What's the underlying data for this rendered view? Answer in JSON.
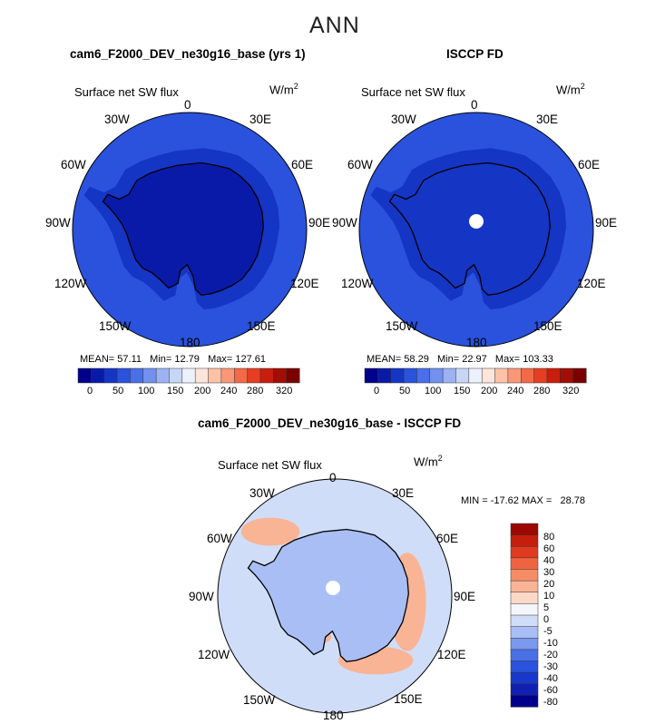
{
  "figure": {
    "season": "ANN",
    "colors": {
      "land_outline": "#000000",
      "pole_hole": "#ffffff"
    }
  },
  "chart_data": [
    {
      "type": "heatmap",
      "projection": "south-polar-stereographic",
      "title": "cam6_F2000_DEV_ne30g16_base (yrs 1)",
      "variable": "Surface net SW flux",
      "units_prefix": "W/m",
      "units_power": "2",
      "longitude_labels": [
        "0",
        "30E",
        "60E",
        "90E",
        "120E",
        "150E",
        "180",
        "150W",
        "120W",
        "90W",
        "60W",
        "30W"
      ],
      "stats": {
        "mean_label": "MEAN=",
        "mean": "57.11",
        "min_label": "Min=",
        "min": "12.79",
        "max_label": "Max=",
        "max": "127.61"
      },
      "colorbar": {
        "orientation": "horizontal",
        "levels": [
          "0",
          "50",
          "100",
          "150",
          "200",
          "240",
          "280",
          "320"
        ],
        "colors": [
          "#00008a",
          "#0a1aa8",
          "#1535c4",
          "#2a52dc",
          "#4a6fe8",
          "#7290ee",
          "#9db2f2",
          "#c8d6f6",
          "#edf1fb",
          "#fde5da",
          "#fbc2a8",
          "#f89878",
          "#f26a48",
          "#e53e22",
          "#c81e0e",
          "#a20d06",
          "#7a0000"
        ]
      },
      "fields": {
        "ocean": 105,
        "coast_ring": 80,
        "antarctica": 35,
        "interior": 28,
        "east_antarctica": 40
      }
    },
    {
      "type": "heatmap",
      "projection": "south-polar-stereographic",
      "title": "ISCCP FD",
      "variable": "Surface net SW flux",
      "units_prefix": "W/m",
      "units_power": "2",
      "longitude_labels": [
        "0",
        "30E",
        "60E",
        "90E",
        "120E",
        "150E",
        "180",
        "150W",
        "120W",
        "90W",
        "60W",
        "30W"
      ],
      "stats": {
        "mean_label": "MEAN=",
        "mean": "58.29",
        "min_label": "Min=",
        "min": "22.97",
        "max_label": "Max=",
        "max": "103.33"
      },
      "colorbar": {
        "orientation": "horizontal",
        "levels": [
          "0",
          "50",
          "100",
          "150",
          "200",
          "240",
          "280",
          "320"
        ],
        "colors": [
          "#00008a",
          "#0a1aa8",
          "#1535c4",
          "#2a52dc",
          "#4a6fe8",
          "#7290ee",
          "#9db2f2",
          "#c8d6f6",
          "#edf1fb",
          "#fde5da",
          "#fbc2a8",
          "#f89878",
          "#f26a48",
          "#e53e22",
          "#c81e0e",
          "#a20d06",
          "#7a0000"
        ]
      },
      "fields": {
        "ocean": 100,
        "coast_ring": 85,
        "antarctica": 55,
        "interior": 50,
        "east_antarctica": 58
      }
    },
    {
      "type": "heatmap",
      "projection": "south-polar-stereographic",
      "title": "cam6_F2000_DEV_ne30g16_base - ISCCP FD",
      "variable": "Surface net SW flux",
      "units_prefix": "W/m",
      "units_power": "2",
      "longitude_labels": [
        "0",
        "30E",
        "60E",
        "90E",
        "120E",
        "150E",
        "180",
        "150W",
        "120W",
        "90W",
        "60W",
        "30W"
      ],
      "stats": {
        "min_label": "MIN =",
        "min": "-17.62",
        "max_label": "MAX =",
        "max": "28.78"
      },
      "colorbar": {
        "orientation": "vertical",
        "levels": [
          "-80",
          "-60",
          "-40",
          "-30",
          "-20",
          "-10",
          "-5",
          "0",
          "5",
          "10",
          "20",
          "30",
          "40",
          "60",
          "80"
        ],
        "colors": [
          "#00008a",
          "#1020b0",
          "#1838cc",
          "#2a52dc",
          "#4a70e6",
          "#7a98ee",
          "#a8bef4",
          "#d0ddf8",
          "#f4f6fb",
          "#fcd8c6",
          "#f9b495",
          "#f58c66",
          "#ef6440",
          "#e03a20",
          "#c41e0c",
          "#9c0800"
        ]
      },
      "fields": {
        "ocean": -3,
        "antarctica": -8,
        "positive_band": 12
      }
    }
  ]
}
